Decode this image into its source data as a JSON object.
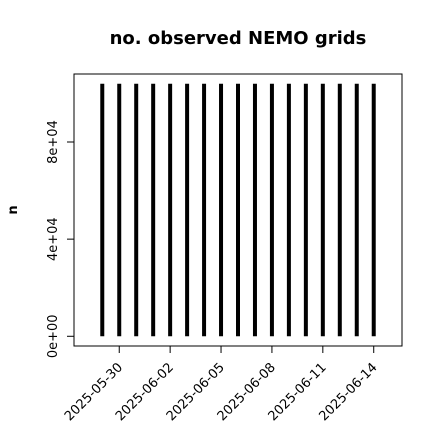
{
  "chart_data": {
    "type": "bar",
    "title": "no. observed NEMO grids",
    "y_label": "n",
    "x": [
      "2025-05-29",
      "2025-05-30",
      "2025-05-31",
      "2025-06-01",
      "2025-06-02",
      "2025-06-03",
      "2025-06-04",
      "2025-06-05",
      "2025-06-06",
      "2025-06-07",
      "2025-06-08",
      "2025-06-09",
      "2025-06-10",
      "2025-06-11",
      "2025-06-12",
      "2025-06-13",
      "2025-06-14"
    ],
    "values": [
      104000,
      104000,
      104000,
      104000,
      104000,
      104000,
      104000,
      104000,
      104000,
      104000,
      104000,
      104000,
      104000,
      104000,
      104000,
      104000,
      104000
    ],
    "color": "#000000",
    "xlim": [
      "2025-05-27T08:00",
      "2025-06-15T16:00"
    ],
    "xticks": [
      "2025-05-30",
      "2025-06-02",
      "2025-06-05",
      "2025-06-08",
      "2025-06-11",
      "2025-06-14"
    ],
    "ylim": [
      -4000,
      108000
    ],
    "yticks": [
      {
        "value": 0,
        "label": "0e+00"
      },
      {
        "value": 40000,
        "label": "4e+04"
      },
      {
        "value": 80000,
        "label": "8e+04"
      }
    ],
    "grid": false
  }
}
